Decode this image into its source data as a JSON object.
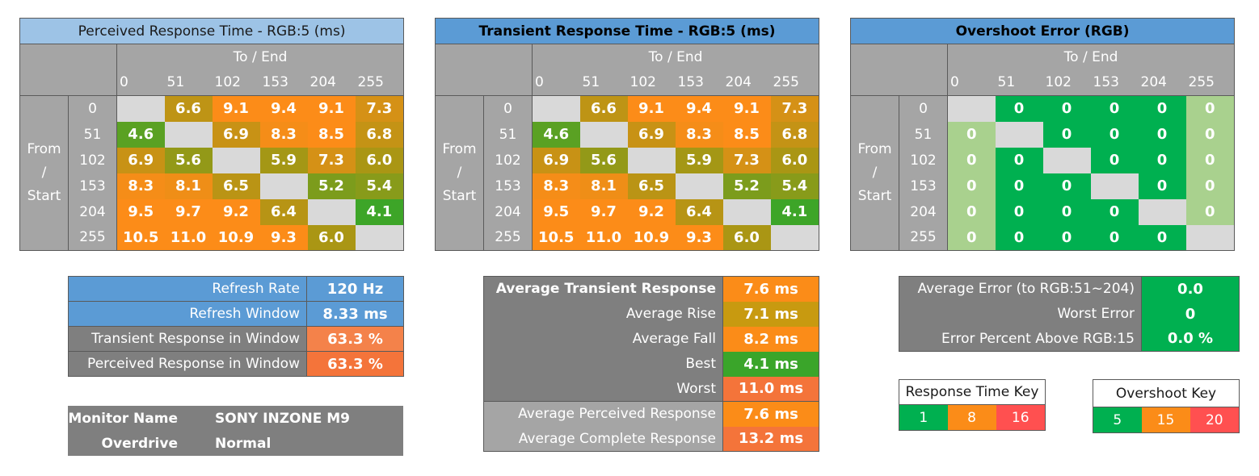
{
  "colors": {
    "good_green": "#00b050",
    "mid_orange": "#fb8c18",
    "bad_red": "#ff5050",
    "header_blue": "#5b9bd5",
    "header_light_blue": "#9dc3e6",
    "grid_grey": "#a5a5a5",
    "diag_grey": "#d9d9d9",
    "stat_dark": "#7f7f7f"
  },
  "chart_data": [
    {
      "type": "heatmap",
      "title": "Perceived Response Time - RGB:5 (ms)",
      "x_axis_label": "To / End",
      "y_axis_label": [
        "From",
        "/",
        "Start"
      ],
      "categories": [
        "0",
        "51",
        "102",
        "153",
        "204",
        "255"
      ],
      "values": [
        [
          null,
          6.6,
          9.1,
          9.4,
          9.1,
          7.3
        ],
        [
          4.6,
          null,
          6.9,
          8.3,
          8.5,
          6.8
        ],
        [
          6.9,
          5.6,
          null,
          5.9,
          7.3,
          6.0
        ],
        [
          8.3,
          8.1,
          6.5,
          null,
          5.2,
          5.4
        ],
        [
          9.5,
          9.7,
          9.2,
          6.4,
          null,
          4.1
        ],
        [
          10.5,
          11.0,
          10.9,
          9.3,
          6.0,
          null
        ]
      ]
    },
    {
      "type": "heatmap",
      "title": "Transient Response Time - RGB:5 (ms)",
      "x_axis_label": "To / End",
      "y_axis_label": [
        "From",
        "/",
        "Start"
      ],
      "categories": [
        "0",
        "51",
        "102",
        "153",
        "204",
        "255"
      ],
      "values": [
        [
          null,
          6.6,
          9.1,
          9.4,
          9.1,
          7.3
        ],
        [
          4.6,
          null,
          6.9,
          8.3,
          8.5,
          6.8
        ],
        [
          6.9,
          5.6,
          null,
          5.9,
          7.3,
          6.0
        ],
        [
          8.3,
          8.1,
          6.5,
          null,
          5.2,
          5.4
        ],
        [
          9.5,
          9.7,
          9.2,
          6.4,
          null,
          4.1
        ],
        [
          10.5,
          11.0,
          10.9,
          9.3,
          6.0,
          null
        ]
      ]
    },
    {
      "type": "heatmap",
      "title": "Overshoot Error (RGB)",
      "x_axis_label": "To / End",
      "y_axis_label": [
        "From",
        "/",
        "Start"
      ],
      "categories": [
        "0",
        "51",
        "102",
        "153",
        "204",
        "255"
      ],
      "values": [
        [
          null,
          0,
          0,
          0,
          0,
          0
        ],
        [
          0,
          null,
          0,
          0,
          0,
          0
        ],
        [
          0,
          0,
          null,
          0,
          0,
          0
        ],
        [
          0,
          0,
          0,
          null,
          0,
          0
        ],
        [
          0,
          0,
          0,
          0,
          null,
          0
        ],
        [
          0,
          0,
          0,
          0,
          0,
          null
        ]
      ]
    }
  ],
  "refresh": [
    {
      "label": "Refresh Rate",
      "value": "120 Hz"
    },
    {
      "label": "Refresh Window",
      "value": "8.33 ms"
    },
    {
      "label": "Transient Response in Window",
      "value": "63.3 %"
    },
    {
      "label": "Perceived Response in Window",
      "value": "63.3 %"
    }
  ],
  "monitor": {
    "name_label": "Monitor Name",
    "name_value": "SONY INZONE M9",
    "overdrive_label": "Overdrive",
    "overdrive_value": "Normal"
  },
  "transient_stats": [
    {
      "label": "Average Transient Response",
      "value": "7.6 ms",
      "ms": 7.6
    },
    {
      "label": "Average Rise",
      "value": "7.1 ms",
      "ms": 7.1
    },
    {
      "label": "Average Fall",
      "value": "8.2 ms",
      "ms": 8.2
    },
    {
      "label": "Best",
      "value": "4.1 ms",
      "ms": 4.1
    },
    {
      "label": "Worst",
      "value": "11.0 ms",
      "ms": 11.0
    },
    {
      "label": "Average Perceived Response",
      "value": "7.6 ms",
      "ms": 7.6
    },
    {
      "label": "Average Complete Response",
      "value": "13.2 ms",
      "ms": 13.2
    }
  ],
  "error_stats": [
    {
      "label": "Average Error (to RGB:51~204)",
      "value": "0.0"
    },
    {
      "label": "Worst Error",
      "value": "0"
    },
    {
      "label": "Error Percent Above RGB:15",
      "value": "0.0 %"
    }
  ],
  "response_key": {
    "title": "Response Time Key",
    "values": [
      "1",
      "8",
      "16"
    ]
  },
  "overshoot_key": {
    "title": "Overshoot Key",
    "values": [
      "5",
      "15",
      "20"
    ]
  }
}
